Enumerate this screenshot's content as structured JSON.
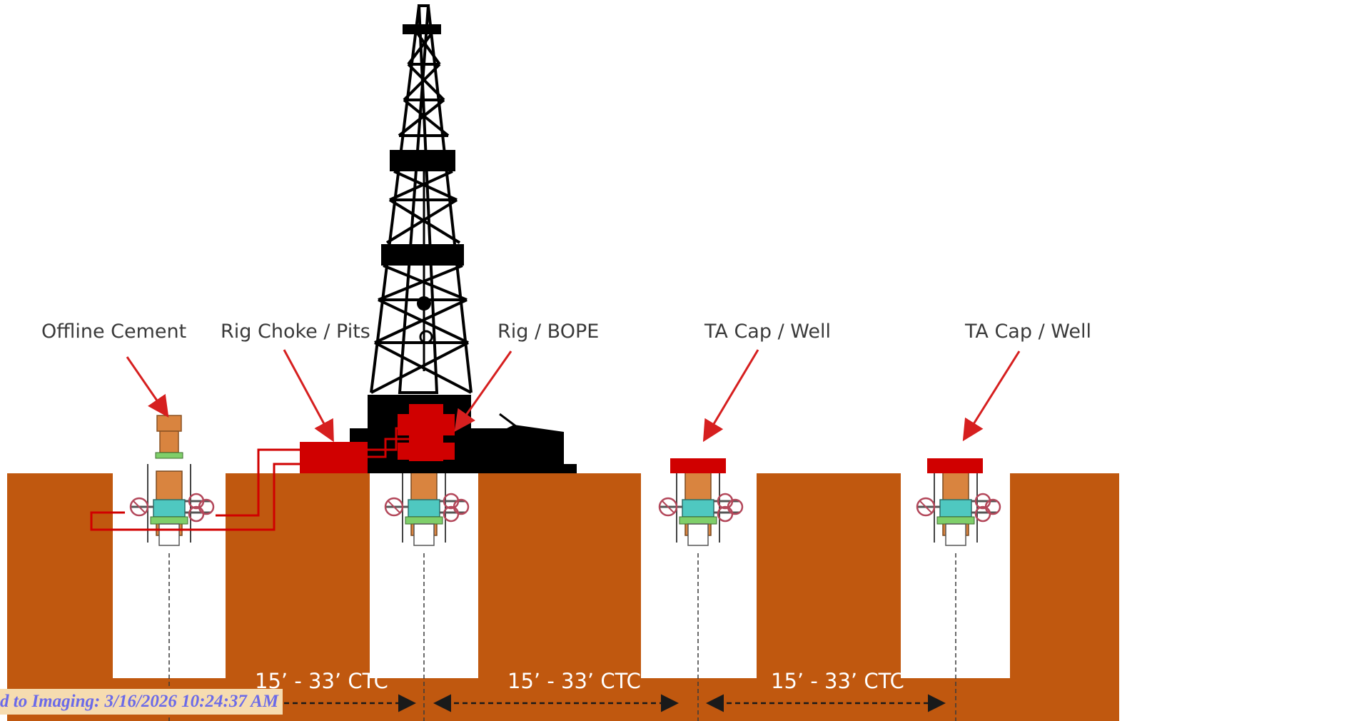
{
  "labels": {
    "offline_cement": "Offline Cement",
    "rig_choke_pits": "Rig Choke / Pits",
    "rig_bope": "Rig / BOPE",
    "ta_cap_well_1": "TA Cap / Well",
    "ta_cap_well_2": "TA Cap / Well"
  },
  "spacing": {
    "ctc_1": "15’ - 33’ CTC",
    "ctc_2": "15’ - 33’ CTC",
    "ctc_3": "15’ - 33’ CTC"
  },
  "stamp": "d to Imaging: 3/16/2026 10:24:37 AM",
  "colors": {
    "ground": "#c0580f",
    "rig": "#000000",
    "equipment_red": "#d00000",
    "arrow_red": "#d61f1f",
    "wellhead_orange": "#d9843f",
    "wellhead_teal": "#4fc8c0",
    "stamp_text": "#6b6ae8",
    "stamp_bg": "#f6dcb0"
  },
  "icons": [
    "drilling-rig-icon",
    "wellhead-icon",
    "valve-wheel-icon",
    "arrow-icon"
  ]
}
